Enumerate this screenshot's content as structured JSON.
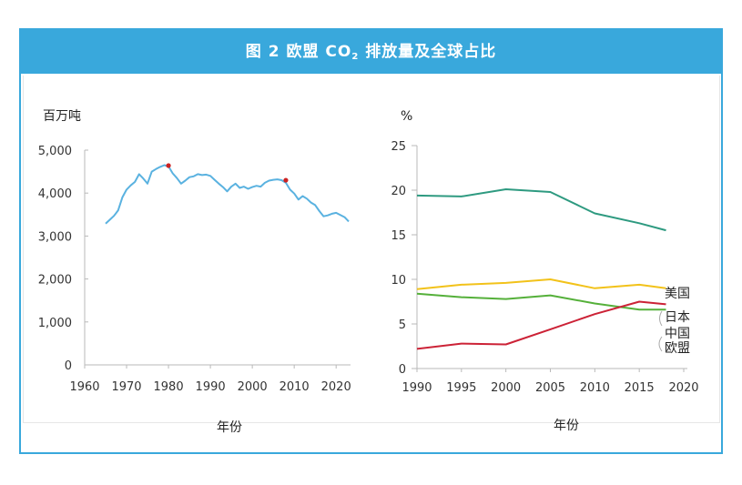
{
  "figure": {
    "title_prefix": "图 2   欧盟 CO",
    "title_sub": "2",
    "title_suffix": " 排放量及全球占比"
  },
  "chart_data": [
    {
      "type": "line",
      "ylabel": "百万吨",
      "xlabel": "年份",
      "xlim": [
        1960,
        2023
      ],
      "ylim": [
        0,
        5000
      ],
      "xticks": [
        "1960",
        "1970",
        "1980",
        "1990",
        "2000",
        "2010",
        "2020"
      ],
      "yticks": [
        "0",
        "1,000",
        "2,000",
        "3,000",
        "4,000",
        "5,000"
      ],
      "grid": false,
      "colors": {
        "line": "#5ab2e0",
        "marker": "#cc2222"
      },
      "series": [
        {
          "x": [
            1965,
            1966,
            1967,
            1968,
            1969,
            1970,
            1971,
            1972,
            1973,
            1974,
            1975,
            1976,
            1977,
            1978,
            1979,
            1980,
            1981,
            1982,
            1983,
            1984,
            1985,
            1986,
            1987,
            1988,
            1989,
            1990,
            1991,
            1992,
            1993,
            1994,
            1995,
            1996,
            1997,
            1998,
            1999,
            2000,
            2001,
            2002,
            2003,
            2004,
            2005,
            2006,
            2007,
            2008,
            2009,
            2010,
            2011,
            2012,
            2013,
            2014,
            2015,
            2016,
            2017,
            2018,
            2019,
            2020,
            2021,
            2022,
            2023
          ],
          "values": [
            3290,
            3380,
            3470,
            3600,
            3900,
            4080,
            4180,
            4260,
            4440,
            4340,
            4220,
            4500,
            4560,
            4610,
            4650,
            4620,
            4460,
            4350,
            4220,
            4290,
            4370,
            4390,
            4440,
            4420,
            4430,
            4400,
            4310,
            4220,
            4140,
            4040,
            4150,
            4220,
            4120,
            4150,
            4100,
            4140,
            4170,
            4150,
            4240,
            4290,
            4310,
            4320,
            4300,
            4240,
            4080,
            3990,
            3850,
            3930,
            3870,
            3780,
            3720,
            3580,
            3460,
            3480,
            3520,
            3540,
            3490,
            3440,
            3340
          ]
        }
      ],
      "highlight_points": [
        {
          "x": 1980,
          "y": 4640
        },
        {
          "x": 2008,
          "y": 4300
        }
      ]
    },
    {
      "type": "line",
      "ylabel": "%",
      "xlabel": "年份",
      "xlim": [
        1990,
        2020
      ],
      "ylim": [
        0,
        25
      ],
      "xticks": [
        "1990",
        "1995",
        "2000",
        "2005",
        "2010",
        "2015",
        "2020"
      ],
      "yticks": [
        "0",
        "5",
        "10",
        "15",
        "20",
        "25"
      ],
      "grid": false,
      "x": [
        1990,
        1995,
        2000,
        2005,
        2010,
        2015,
        2018
      ],
      "series": [
        {
          "name": "欧盟",
          "color": "#2e9a80",
          "values": [
            19.4,
            19.3,
            20.1,
            19.8,
            17.4,
            16.3,
            15.5
          ]
        },
        {
          "name": "美国",
          "color": "#f2c21a",
          "values": [
            8.9,
            9.4,
            9.6,
            10.0,
            9.0,
            9.4,
            9.0
          ]
        },
        {
          "name": "中国",
          "color": "#55b03a",
          "values": [
            8.4,
            8.0,
            7.8,
            8.2,
            7.3,
            6.6,
            6.6
          ]
        },
        {
          "name": "日本",
          "color": "#cc2236",
          "values": [
            2.2,
            2.8,
            2.7,
            4.4,
            6.1,
            7.5,
            7.2
          ]
        }
      ],
      "legend_labels": [
        "美国",
        "日本",
        "中国",
        "欧盟"
      ]
    }
  ]
}
